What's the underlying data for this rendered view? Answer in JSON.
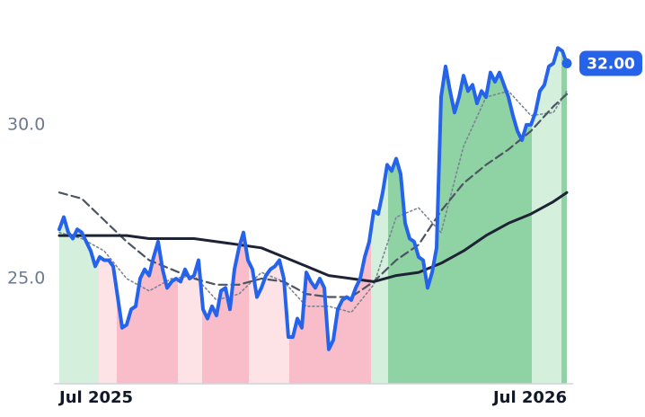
{
  "chart_data": {
    "type": "line",
    "xlim": [
      0,
      113
    ],
    "ylim": [
      21.58,
      34.06
    ],
    "xticks": [
      {
        "value": 0,
        "label": "Jul 2025"
      },
      {
        "value": 113,
        "label": "Jul 2026"
      }
    ],
    "yticks": [
      {
        "value": 25,
        "label": "25.0"
      },
      {
        "value": 30,
        "label": "30.0"
      }
    ],
    "series": [
      {
        "color": "#2563eb",
        "style": "solid",
        "width": 4,
        "x": [
          0,
          1,
          2,
          3,
          4,
          5,
          6,
          7,
          8,
          9,
          10,
          11,
          12,
          13,
          14,
          15,
          16,
          17,
          18,
          19,
          20,
          21,
          22,
          23,
          24,
          25,
          26,
          27,
          28,
          29,
          30,
          31,
          32,
          33,
          34,
          35,
          36,
          37,
          38,
          39,
          40,
          41,
          42,
          43,
          44,
          45,
          46,
          47,
          48,
          49,
          50,
          51,
          52,
          53,
          54,
          55,
          56,
          57,
          58,
          59,
          60,
          61,
          62,
          63,
          64,
          65,
          66,
          67,
          68,
          69,
          70,
          71,
          72,
          73,
          74,
          75,
          76,
          77,
          78,
          79,
          80,
          81,
          82,
          83,
          84,
          85,
          86,
          87,
          88,
          89,
          90,
          91,
          92,
          93,
          94,
          95,
          96,
          97,
          98,
          99,
          100,
          101,
          102,
          103,
          104,
          105,
          106,
          107,
          108,
          109,
          110,
          111,
          112,
          113
        ],
        "values": [
          26.6,
          27.0,
          26.5,
          26.3,
          26.6,
          26.5,
          26.2,
          25.9,
          25.4,
          25.7,
          25.6,
          25.6,
          25.4,
          24.4,
          23.4,
          23.5,
          24.0,
          24.1,
          25.0,
          25.3,
          25.1,
          25.7,
          26.2,
          25.3,
          24.7,
          24.9,
          25.0,
          24.9,
          25.3,
          25.0,
          25.1,
          25.6,
          24.0,
          23.7,
          24.1,
          23.8,
          24.6,
          24.7,
          24.0,
          25.3,
          26.0,
          26.5,
          25.6,
          25.3,
          24.4,
          24.7,
          25.1,
          25.3,
          25.4,
          25.6,
          25.0,
          23.1,
          23.1,
          23.7,
          23.4,
          25.2,
          24.9,
          24.7,
          25.0,
          24.7,
          22.7,
          23.0,
          24.0,
          24.3,
          24.4,
          24.3,
          24.7,
          25.0,
          25.7,
          26.2,
          27.2,
          27.1,
          27.8,
          28.7,
          28.5,
          28.9,
          28.4,
          26.8,
          26.3,
          26.2,
          25.7,
          25.6,
          24.7,
          25.2,
          26.0,
          30.9,
          31.9,
          31.1,
          30.4,
          30.9,
          31.6,
          31.1,
          31.3,
          30.7,
          31.1,
          30.9,
          31.7,
          31.4,
          31.7,
          31.3,
          30.9,
          30.3,
          29.8,
          29.5,
          30.0,
          30.0,
          30.4,
          31.1,
          31.3,
          31.9,
          32.0,
          32.5,
          32.4,
          32.0
        ]
      },
      {
        "color": "#1e2235",
        "style": "solid",
        "width": 3,
        "x": [
          0,
          5,
          10,
          15,
          20,
          25,
          30,
          35,
          40,
          45,
          50,
          55,
          60,
          65,
          70,
          75,
          80,
          85,
          90,
          95,
          100,
          105,
          110,
          113
        ],
        "values": [
          26.4,
          26.4,
          26.4,
          26.4,
          26.3,
          26.3,
          26.3,
          26.2,
          26.1,
          26.0,
          25.7,
          25.4,
          25.1,
          25.0,
          24.9,
          25.1,
          25.2,
          25.5,
          25.9,
          26.4,
          26.8,
          27.1,
          27.5,
          27.8
        ]
      },
      {
        "color": "#4b5563",
        "style": "dashed",
        "width": 2.2,
        "x": [
          0,
          5,
          10,
          15,
          20,
          25,
          30,
          35,
          40,
          45,
          50,
          55,
          60,
          65,
          70,
          75,
          80,
          85,
          90,
          95,
          100,
          105,
          110,
          113
        ],
        "values": [
          27.8,
          27.6,
          26.9,
          26.2,
          25.6,
          25.3,
          25.0,
          24.8,
          24.8,
          25.0,
          24.9,
          24.5,
          24.4,
          24.4,
          24.9,
          25.6,
          26.1,
          27.2,
          28.1,
          28.7,
          29.2,
          29.8,
          30.6,
          31.0
        ]
      },
      {
        "color": "#7c8593",
        "style": "dotted",
        "width": 1.6,
        "x": [
          0,
          5,
          10,
          15,
          20,
          25,
          30,
          35,
          40,
          45,
          50,
          55,
          60,
          65,
          70,
          75,
          80,
          85,
          90,
          95,
          100,
          105,
          110,
          113
        ],
        "values": [
          26.5,
          26.3,
          25.9,
          25.0,
          24.6,
          25.0,
          25.1,
          24.3,
          24.5,
          25.2,
          24.9,
          24.1,
          24.1,
          23.9,
          24.8,
          27.0,
          27.3,
          26.5,
          29.3,
          30.9,
          31.1,
          30.3,
          30.4,
          31.1
        ]
      }
    ],
    "bands": [
      {
        "from": 0,
        "to": 8.8,
        "color": "#d4efdc"
      },
      {
        "from": 8.8,
        "to": 12.8,
        "color": "#fde2e6"
      },
      {
        "from": 12.8,
        "to": 26.4,
        "color": "#f8bdc8"
      },
      {
        "from": 26.4,
        "to": 31.8,
        "color": "#fde2e6"
      },
      {
        "from": 31.8,
        "to": 42.2,
        "color": "#f8bdc8"
      },
      {
        "from": 42.2,
        "to": 51.2,
        "color": "#fde2e6"
      },
      {
        "from": 51.2,
        "to": 69.4,
        "color": "#f8bdc8"
      },
      {
        "from": 69.4,
        "to": 73.2,
        "color": "#d4efdc"
      },
      {
        "from": 73.2,
        "to": 105.2,
        "color": "#8fd2a3"
      },
      {
        "from": 105.2,
        "to": 111.8,
        "color": "#d4efdc"
      },
      {
        "from": 111.8,
        "to": 113,
        "color": "#8fd2a3"
      }
    ],
    "annotations": [
      {
        "x": 113,
        "y": 32.0,
        "label": "32.00",
        "color": "#2563eb"
      }
    ]
  }
}
